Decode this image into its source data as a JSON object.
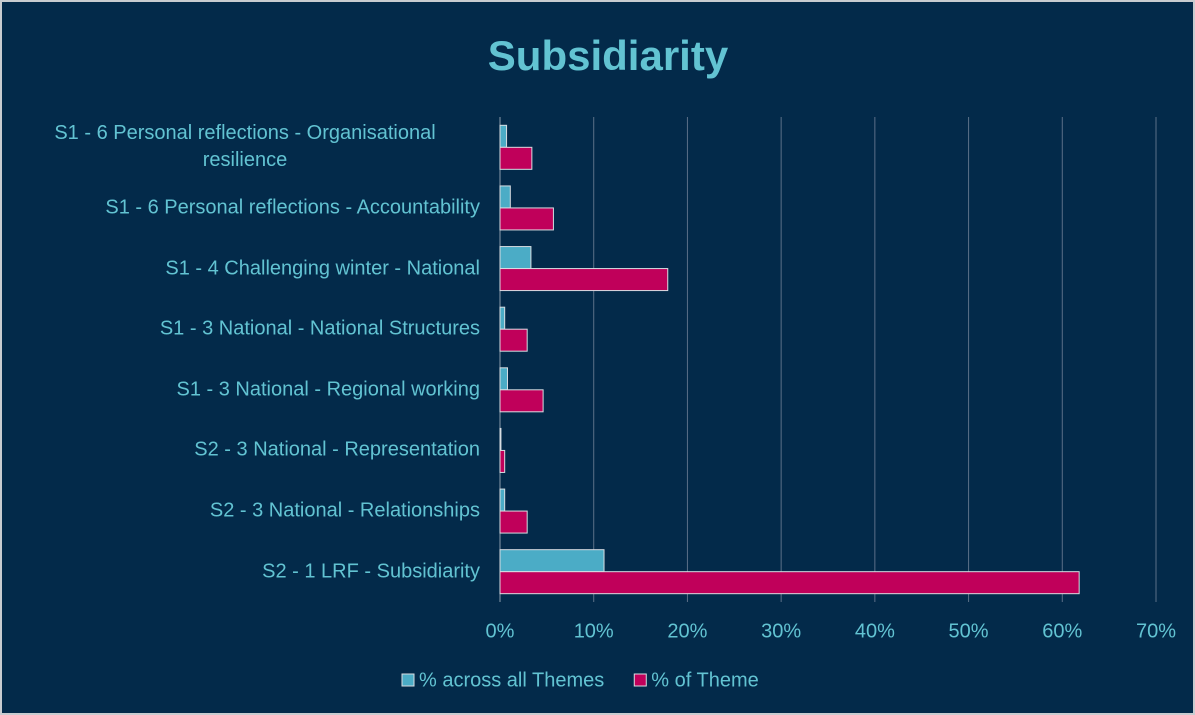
{
  "chart_data": {
    "type": "hbar",
    "title": "Subsidiarity",
    "categories": [
      "S1 - 6 Personal reflections - Organisational resilience",
      "S1 - 6 Personal reflections - Accountability",
      "S1 - 4 Challenging winter - National",
      "S1 - 3 National - National Structures",
      "S1 - 3 National - Regional working",
      "S2 - 3 National - Representation",
      "S2 - 3 National - Relationships",
      "S2 - 1 LRF - Subsidiarity"
    ],
    "series": [
      {
        "name": "% across all Themes",
        "color": "#4bacc6",
        "values": [
          0.7,
          1.1,
          3.3,
          0.5,
          0.8,
          0.1,
          0.5,
          11.1
        ]
      },
      {
        "name": "% of Theme",
        "color": "#c0005a",
        "values": [
          3.4,
          5.7,
          17.9,
          2.9,
          4.6,
          0.5,
          2.9,
          61.8
        ]
      }
    ],
    "xlim": [
      0,
      70
    ],
    "xticks": [
      {
        "value": 0,
        "label": "0%"
      },
      {
        "value": 10,
        "label": "10%"
      },
      {
        "value": 20,
        "label": "20%"
      },
      {
        "value": 30,
        "label": "30%"
      },
      {
        "value": 40,
        "label": "40%"
      },
      {
        "value": 50,
        "label": "50%"
      },
      {
        "value": 60,
        "label": "60%"
      },
      {
        "value": 70,
        "label": "70%"
      }
    ],
    "grid": true,
    "legend": "bottom"
  }
}
